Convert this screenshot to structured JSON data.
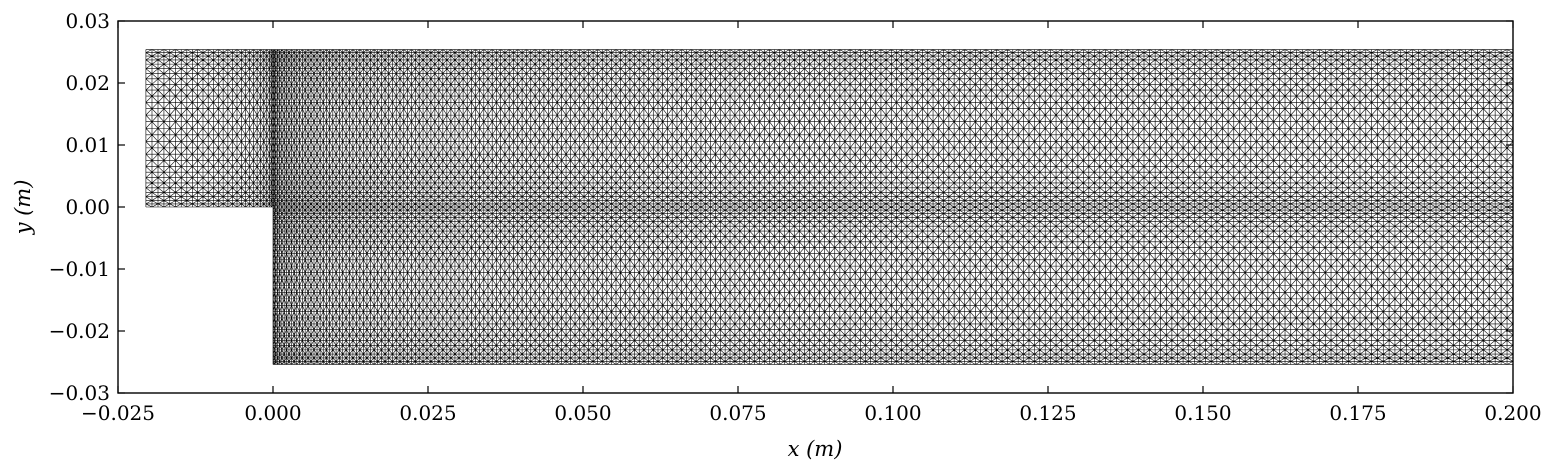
{
  "chart_data": {
    "type": "mesh",
    "xlabel": "x (m)",
    "ylabel": "y (m)",
    "xlim": [
      -0.025,
      0.2
    ],
    "ylim": [
      -0.03,
      0.03
    ],
    "x_ticks": [
      "−0.025",
      "0.000",
      "0.025",
      "0.050",
      "0.075",
      "0.100",
      "0.125",
      "0.150",
      "0.175",
      "0.200"
    ],
    "y_ticks": [
      "0.03",
      "0.02",
      "0.01",
      "0.00",
      "−0.01",
      "−0.02",
      "−0.03"
    ],
    "x_tick_values": [
      -0.025,
      0,
      0.025,
      0.05,
      0.075,
      0.1,
      0.125,
      0.15,
      0.175,
      0.2
    ],
    "y_tick_values": [
      0.03,
      0.02,
      0.01,
      0,
      -0.01,
      -0.02,
      -0.03
    ],
    "domain": {
      "inlet_x": [
        -0.0205,
        0.0
      ],
      "inlet_y": [
        0.0,
        0.0254
      ],
      "channel_x": [
        0.0,
        0.2
      ],
      "channel_y": [
        -0.0254,
        0.0254
      ]
    },
    "mesh": {
      "element": "triangle",
      "inlet_columns": 28,
      "channel_columns": 260,
      "rows_per_half": 30
    }
  }
}
